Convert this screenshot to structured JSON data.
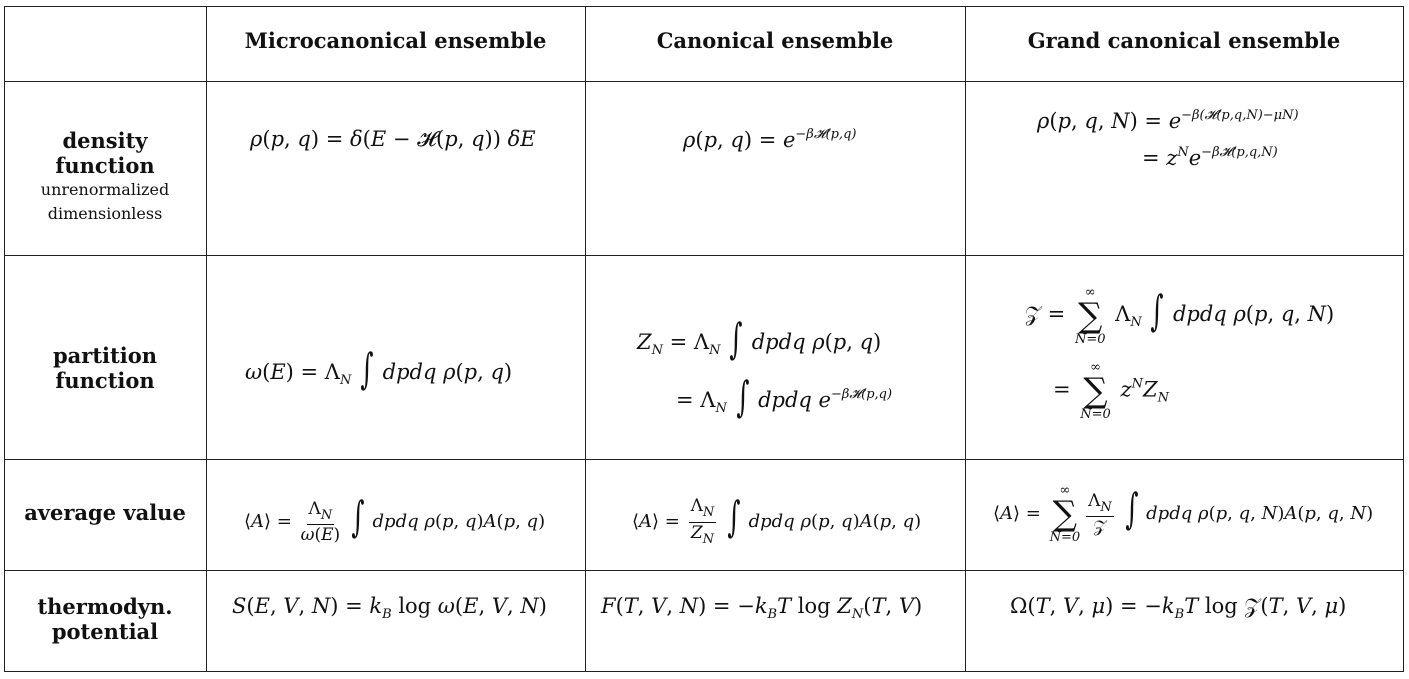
{
  "headers": {
    "col1": "Microcanonical ensemble",
    "col2": "Canonical ensemble",
    "col3": "Grand canonical ensemble"
  },
  "rows": {
    "density": {
      "label_line1": "density",
      "label_line2": "function",
      "sub_line1": "unrenormalized",
      "sub_line2": "dimensionless"
    },
    "partition": {
      "label_line1": "partition",
      "label_line2": "function"
    },
    "average": {
      "label": "average value"
    },
    "potential": {
      "label_line1": "thermodyn.",
      "label_line2": "potential"
    }
  },
  "formulas": {
    "density_micro": "ρ(p, q) = δ(E − ℋ(p, q)) δE",
    "density_canon": "ρ(p, q) = e^{−βℋ(p,q)}",
    "density_grand_1": "ρ(p, q, N) = e^{−β(ℋ(p,q,N)−μN)}",
    "density_grand_2": "= z^N e^{−βℋ(p,q,N)}",
    "partition_micro": "ω(E) = Λ_N ∫ dpdq ρ(p, q)",
    "partition_canon_1": "Z_N = Λ_N ∫ dpdq ρ(p, q)",
    "partition_canon_2": "= Λ_N ∫ dpdq e^{−βℋ(p,q)}",
    "partition_grand_1": "𝒵 = Σ_{N=0}^{∞} Λ_N ∫ dpdq ρ(p, q, N)",
    "partition_grand_2": "= Σ_{N=0}^{∞} z^N Z_N",
    "average_micro": "⟨A⟩ = Λ_N/ω(E) ∫ dpdq ρ(p, q)A(p, q)",
    "average_canon": "⟨A⟩ = Λ_N/Z_N ∫ dpdq ρ(p, q)A(p, q)",
    "average_grand": "⟨A⟩ = Σ_{N=0}^{∞} Λ_N/𝒵 ∫ dpdq ρ(p, q, N)A(p, q, N)",
    "potential_micro": "S(E, V, N) = k_B log ω(E, V, N)",
    "potential_canon": "F(T, V, N) = −k_BT log Z_N(T, V)",
    "potential_grand": "Ω(T, V, μ) = −k_BT log 𝒵(T, V, μ)"
  }
}
